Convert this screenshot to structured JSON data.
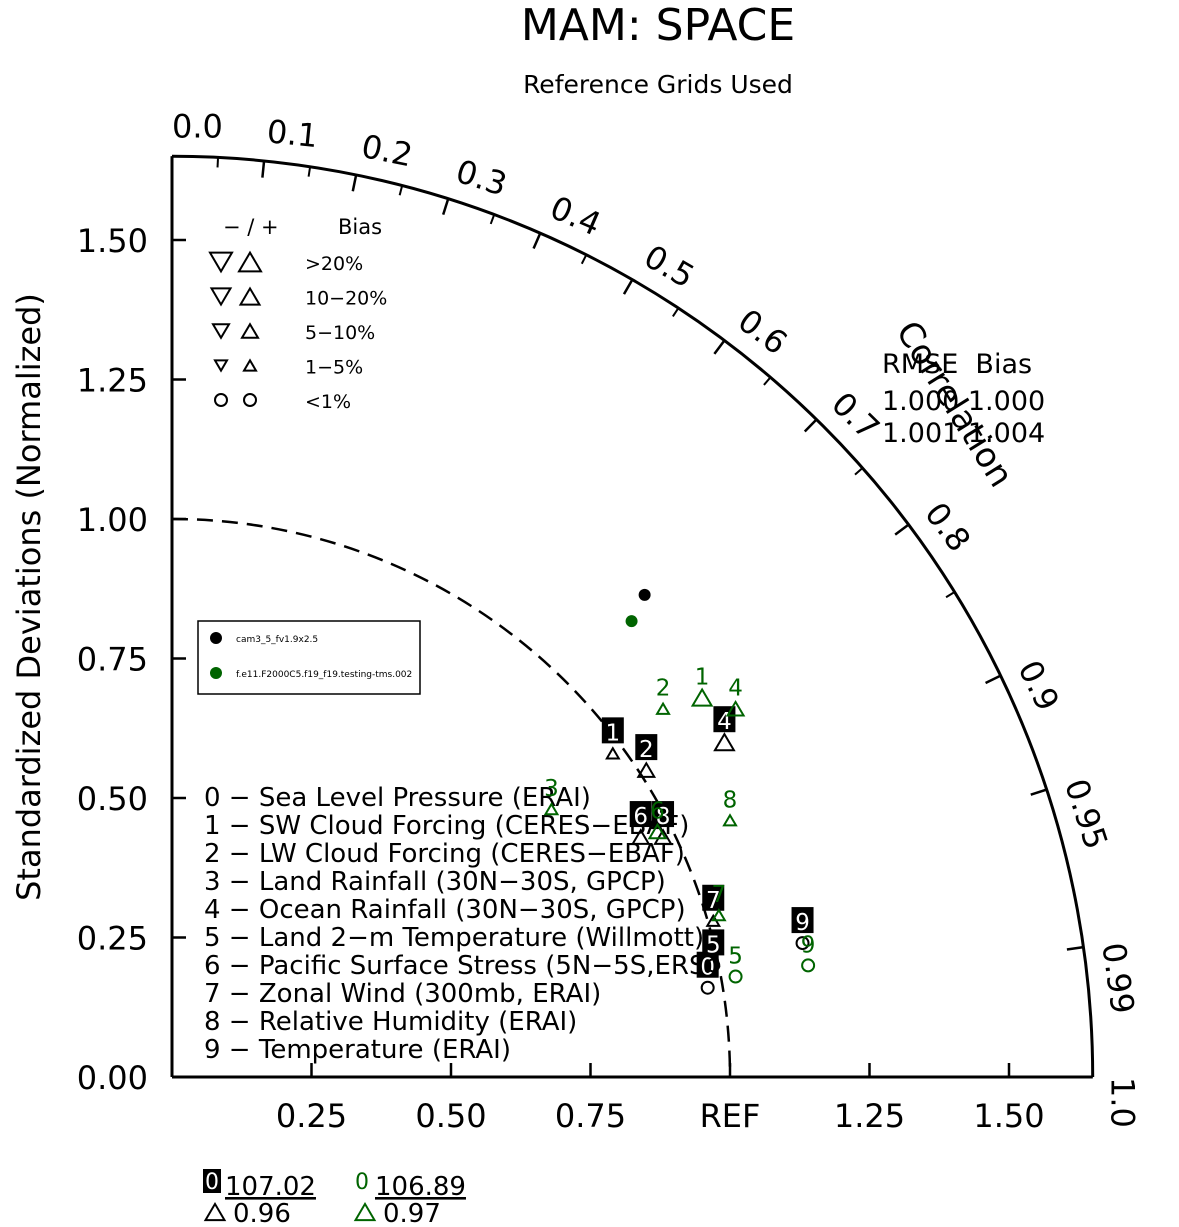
{
  "chart_data": {
    "type": "scatter",
    "title": "MAM: SPACE",
    "subtitle": "Reference Grids Used",
    "ylabel": "Standardized Deviations (Normalized)",
    "arc_label": "Correlation",
    "ref_label": "REF",
    "x_ticks": [
      "0.25",
      "0.50",
      "0.75",
      "1.25",
      "1.50"
    ],
    "y_ticks": [
      "0.00",
      "0.25",
      "0.50",
      "0.75",
      "1.00",
      "1.25",
      "1.50"
    ],
    "corr_ticks": [
      "0.0",
      "0.1",
      "0.2",
      "0.3",
      "0.4",
      "0.5",
      "0.6",
      "0.7",
      "0.8",
      "0.9",
      "0.95",
      "0.99",
      "1.0"
    ],
    "corr_values": [
      0.0,
      0.1,
      0.2,
      0.3,
      0.4,
      0.5,
      0.6,
      0.7,
      0.8,
      0.9,
      0.95,
      0.99,
      1.0
    ],
    "axis_range": [
      0,
      1.65
    ],
    "ref_arc_radius": 1.0,
    "bias_legend": {
      "header_sign": "− / +",
      "header_label": "Bias",
      "rows": [
        {
          "label": ">20%",
          "level": 5
        },
        {
          "label": "10−20%",
          "level": 4
        },
        {
          "label": "5−10%",
          "level": 3
        },
        {
          "label": "1−5%",
          "level": 2
        },
        {
          "label": "<1%",
          "level": 0
        }
      ]
    },
    "series": [
      {
        "name": "cam3_5_fv1.9x2.5",
        "color": "#000000"
      },
      {
        "name": "f.e11.F2000C5.f19_f19.testing-tms.002",
        "color": "#006400"
      }
    ],
    "variables": [
      "0 − Sea Level Pressure (ERAI)",
      "1 − SW Cloud Forcing (CERES−EBAF)",
      "2 − LW Cloud Forcing (CERES−EBAF)",
      "3 − Land Rainfall (30N−30S, GPCP)",
      "4 − Ocean Rainfall (30N−30S, GPCP)",
      "5 − Land 2−m Temperature (Willmott)",
      "6 − Pacific Surface Stress (5N−5S,ERS)",
      "7 − Zonal Wind (300mb, ERAI)",
      "8 − Relative Humidity (ERAI)",
      "9 − Temperature (ERAI)"
    ],
    "points": [
      {
        "series": 0,
        "id": "0",
        "x": 0.96,
        "y": 0.16,
        "bias": 0
      },
      {
        "series": 0,
        "id": "1",
        "x": 0.79,
        "y": 0.58,
        "bias": 2
      },
      {
        "series": 0,
        "id": "2",
        "x": 0.85,
        "y": 0.55,
        "bias": 3
      },
      {
        "series": 0,
        "id": "4",
        "x": 0.99,
        "y": 0.6,
        "bias": 4
      },
      {
        "series": 0,
        "id": "5",
        "x": 0.97,
        "y": 0.2,
        "bias": 0
      },
      {
        "series": 0,
        "id": "6",
        "x": 0.84,
        "y": 0.43,
        "bias": 3
      },
      {
        "series": 0,
        "id": "7",
        "x": 0.97,
        "y": 0.28,
        "bias": 2
      },
      {
        "series": 0,
        "id": "8",
        "x": 0.88,
        "y": 0.43,
        "bias": 3
      },
      {
        "series": 0,
        "id": "9",
        "x": 1.13,
        "y": 0.24,
        "bias": 0
      },
      {
        "series": 1,
        "id": "1",
        "x": 0.95,
        "y": 0.68,
        "bias": 4
      },
      {
        "series": 1,
        "id": "2",
        "x": 0.88,
        "y": 0.66,
        "bias": 2
      },
      {
        "series": 1,
        "id": "3",
        "x": 0.68,
        "y": 0.48,
        "bias": 2
      },
      {
        "series": 1,
        "id": "4",
        "x": 1.01,
        "y": 0.66,
        "bias": 3
      },
      {
        "series": 1,
        "id": "5",
        "x": 1.01,
        "y": 0.18,
        "bias": 0
      },
      {
        "series": 1,
        "id": "6",
        "x": 0.87,
        "y": 0.44,
        "bias": 3
      },
      {
        "series": 1,
        "id": "7",
        "x": 0.98,
        "y": 0.29,
        "bias": 2
      },
      {
        "series": 1,
        "id": "8",
        "x": 1.0,
        "y": 0.46,
        "bias": 2
      },
      {
        "series": 1,
        "id": "9",
        "x": 1.14,
        "y": 0.2,
        "bias": 0
      }
    ],
    "off_plot": [
      {
        "series": 0,
        "id": "0",
        "value": "107.02",
        "bias_value": "0.96"
      },
      {
        "series": 1,
        "id": "0",
        "value": "106.89",
        "bias_value": "0.97"
      }
    ],
    "rmse_header": "RMSE  Bias",
    "rmse_rows": [
      {
        "series": 0,
        "r": 1.21,
        "corr": 0.7,
        "text": "1.000 1.000"
      },
      {
        "series": 1,
        "r": 1.16,
        "corr": 0.71,
        "text": "1.001 1.004"
      }
    ]
  }
}
